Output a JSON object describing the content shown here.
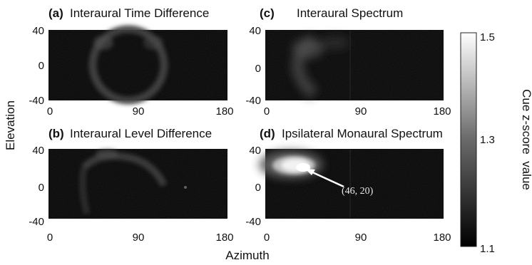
{
  "chart_data": {
    "type": "heatmap",
    "xlabel": "Azimuth",
    "ylabel": "Elevation",
    "xlim": [
      0,
      180
    ],
    "ylim": [
      -40,
      40
    ],
    "x_ticks": [
      "0",
      "90",
      "180"
    ],
    "y_ticks": [
      "40",
      "0",
      "-40"
    ],
    "colorbar": {
      "label": "Cue z-score  value",
      "min": 1.1,
      "max": 1.5,
      "ticks": [
        "1.5",
        "1.3",
        "1.1"
      ],
      "colormap": "grayscale (black = 1.1, white = 1.5)"
    },
    "panels": [
      {
        "letter": "(a)",
        "title": "Interaural Time Difference",
        "pattern": "faint ring of elevated z-score centred near azimuth 90, spanning roughly azimuth 40–125"
      },
      {
        "letter": "(c)",
        "title": "Interaural Spectrum",
        "pattern": "faint arc on the left side, azimuth roughly 20–70, brightest near elevation 10–30"
      },
      {
        "letter": "(b)",
        "title": "Interaural Level Difference",
        "pattern": "faint arc from azimuth ~45 to ~110, mostly in upper elevations"
      },
      {
        "letter": "(d)",
        "title": "Ipsilateral Monaural Spectrum",
        "pattern": "bright compact blob reaching 1.5 at the peak",
        "peak": {
          "azimuth": 46,
          "elevation": 20,
          "label": "(46, 20)"
        }
      }
    ]
  }
}
